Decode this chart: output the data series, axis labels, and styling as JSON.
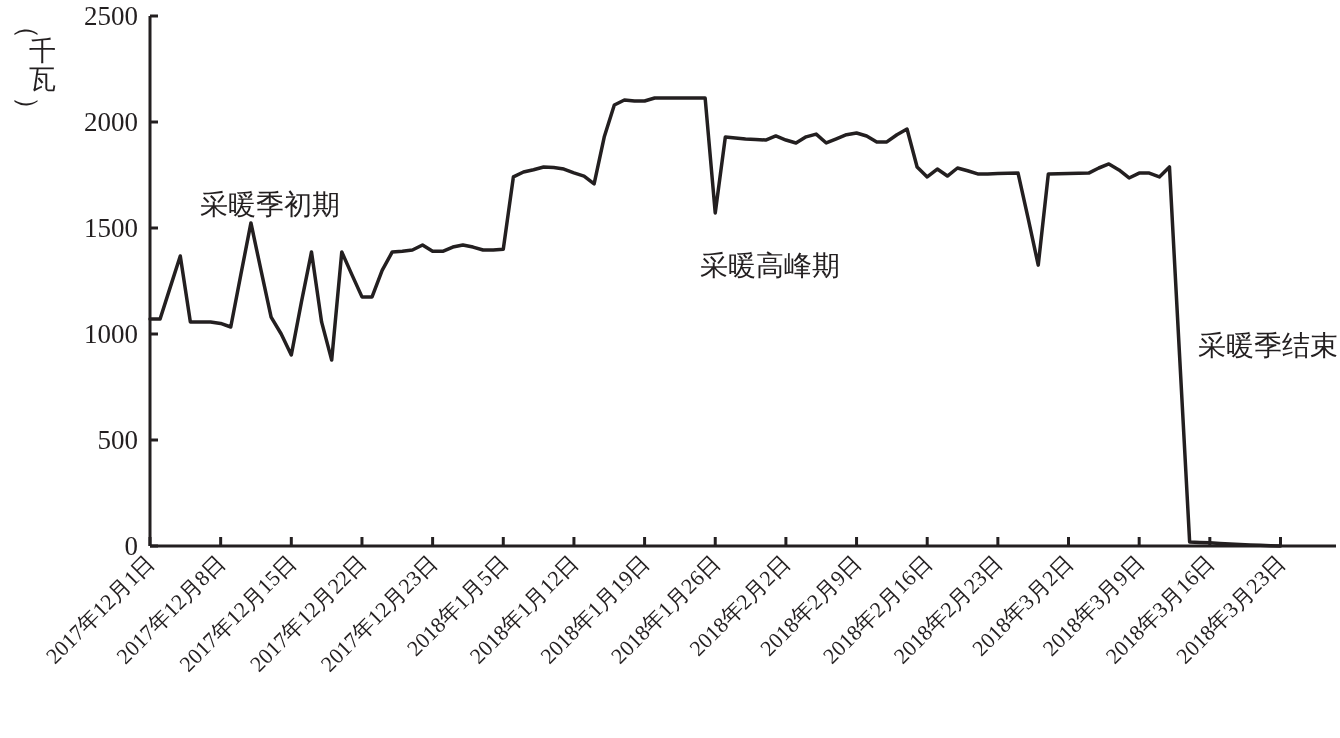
{
  "chart_data": {
    "type": "line",
    "ylabel": "（千瓦）",
    "color": "#231f20",
    "categories": [
      "2017年12月1日",
      null,
      null,
      null,
      null,
      null,
      null,
      "2017年12月8日",
      null,
      null,
      null,
      null,
      null,
      null,
      "2017年12月15日",
      null,
      null,
      null,
      null,
      null,
      null,
      "2017年12月22日",
      null,
      null,
      null,
      null,
      null,
      null,
      "2017年12月23日",
      null,
      null,
      null,
      null,
      null,
      null,
      "2018年1月5日",
      null,
      null,
      null,
      null,
      null,
      null,
      "2018年1月12日",
      null,
      null,
      null,
      null,
      null,
      null,
      "2018年1月19日",
      null,
      null,
      null,
      null,
      null,
      null,
      "2018年1月26日",
      null,
      null,
      null,
      null,
      null,
      null,
      "2018年2月2日",
      null,
      null,
      null,
      null,
      null,
      null,
      "2018年2月9日",
      null,
      null,
      null,
      null,
      null,
      null,
      "2018年2月16日",
      null,
      null,
      null,
      null,
      null,
      null,
      "2018年2月23日",
      null,
      null,
      null,
      null,
      null,
      null,
      "2018年3月2日",
      null,
      null,
      null,
      null,
      null,
      null,
      "2018年3月9日",
      null,
      null,
      null,
      null,
      null,
      null,
      "2018年3月16日",
      null,
      null,
      null,
      null,
      null,
      null,
      "2018年3月23日"
    ],
    "values": [
      1071,
      1071,
      1220,
      1368,
      1057,
      1057,
      1057,
      1050,
      1033,
      1280,
      1524,
      1300,
      1080,
      1000,
      901,
      1150,
      1387,
      1057,
      877,
      1387,
      1280,
      1175,
      1175,
      1300,
      1387,
      1390,
      1396,
      1420,
      1390,
      1390,
      1410,
      1420,
      1410,
      1396,
      1396,
      1400,
      1741,
      1764,
      1775,
      1788,
      1785,
      1778,
      1760,
      1745,
      1708,
      1929,
      2080,
      2104,
      2099,
      2099,
      2113,
      2113,
      2113,
      2113,
      2113,
      2113,
      1571,
      1929,
      1925,
      1920,
      1918,
      1915,
      1934,
      1915,
      1901,
      1930,
      1943,
      1901,
      1920,
      1940,
      1948,
      1934,
      1906,
      1906,
      1940,
      1967,
      1788,
      1741,
      1778,
      1745,
      1783,
      1770,
      1755,
      1755,
      1757,
      1758,
      1759,
      1545,
      1325,
      1755,
      1756,
      1757,
      1758,
      1759,
      1783,
      1802,
      1774,
      1736,
      1759,
      1759,
      1741,
      1788,
      900,
      19,
      17,
      15,
      12,
      9,
      7,
      5,
      3,
      1,
      0
    ],
    "ylim": [
      0,
      2500
    ],
    "yticks": [
      0,
      500,
      1000,
      1500,
      2000,
      2500
    ],
    "annotations": [
      "采暖季初期",
      "采暖高峰期",
      "采暖季结束"
    ]
  }
}
